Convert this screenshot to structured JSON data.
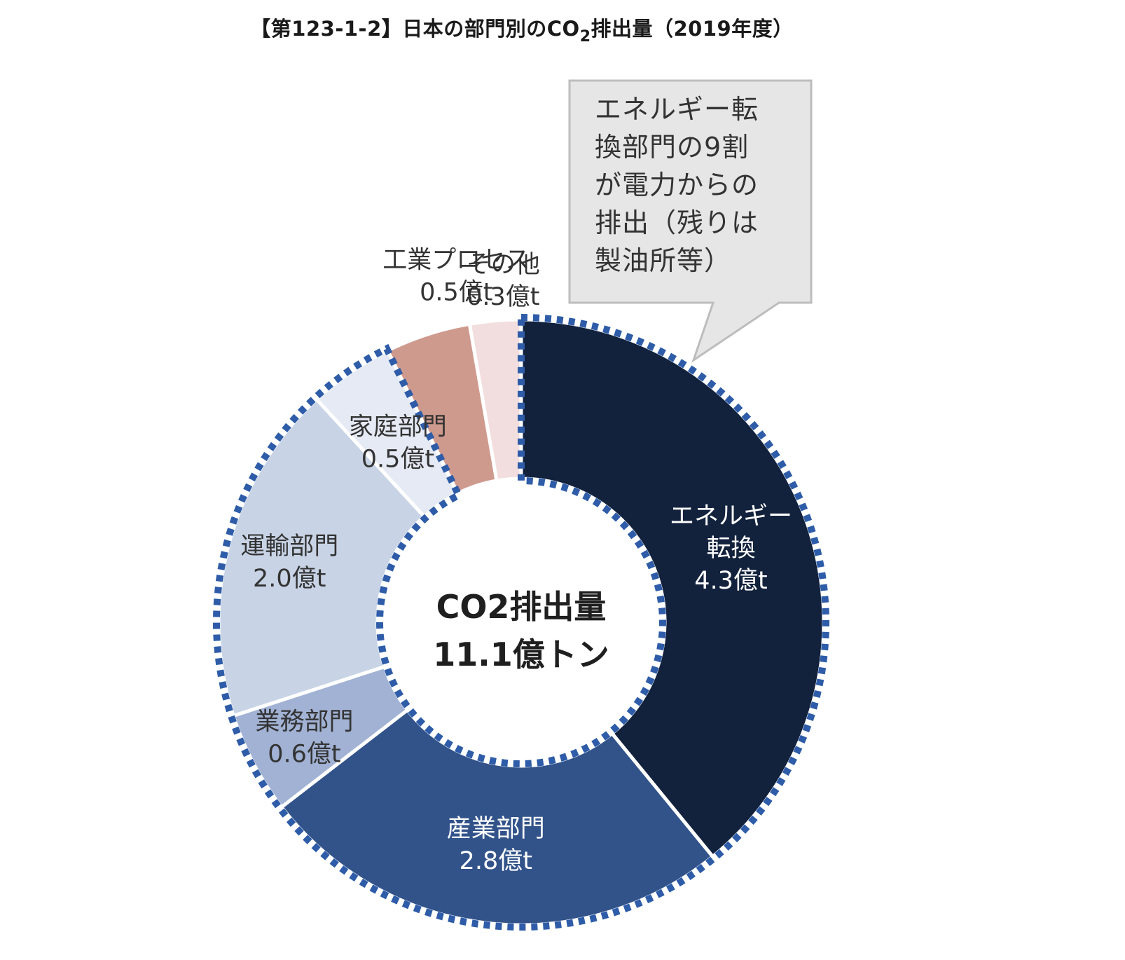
{
  "title": {
    "prefix": "【第123-1-2】日本の部門別のCO",
    "sub": "2",
    "suffix": "排出量（2019年度）"
  },
  "callout": {
    "line1": "エネルギー転",
    "line2": "換部門の9割",
    "line3": "が電力からの",
    "line4": "排出（残りは",
    "line5": "製油所等）"
  },
  "center": {
    "line1": "CO2排出量",
    "line2": "11.1億トン"
  },
  "chart_data": {
    "type": "pie",
    "title": "日本の部門別のCO2排出量（2019年度）",
    "unit": "億t",
    "total": 11.1,
    "slices": [
      {
        "label": "エネルギー転換",
        "label_lines": [
          "エネルギー",
          "転換"
        ],
        "value": 4.3,
        "value_text": "4.3億t",
        "color": "#12213c",
        "text_color": "#ffffff"
      },
      {
        "label": "産業部門",
        "label_lines": [
          "産業部門"
        ],
        "value": 2.8,
        "value_text": "2.8億t",
        "color": "#32538a",
        "text_color": "#ffffff"
      },
      {
        "label": "業務部門",
        "label_lines": [
          "業務部門"
        ],
        "value": 0.6,
        "value_text": "0.6億t",
        "color": "#a1b2d4",
        "text_color": "#333333"
      },
      {
        "label": "運輸部門",
        "label_lines": [
          "運輸部門"
        ],
        "value": 2.0,
        "value_text": "2.0億t",
        "color": "#c8d4e6",
        "text_color": "#333333"
      },
      {
        "label": "家庭部門",
        "label_lines": [
          "家庭部門"
        ],
        "value": 0.5,
        "value_text": "0.5億t",
        "color": "#e5eaf4",
        "text_color": "#333333"
      },
      {
        "label": "工業プロセス",
        "label_lines": [
          "工業プロセス"
        ],
        "value": 0.5,
        "value_text": "0.5億t",
        "color": "#cf9a8e",
        "text_color": "#333333"
      },
      {
        "label": "その他",
        "label_lines": [
          "その他"
        ],
        "value": 0.3,
        "value_text": "0.3億t",
        "color": "#f2dede",
        "text_color": "#333333"
      }
    ],
    "highlight": "dotted blue outline around all sectors except 工業プロセス and その他",
    "highlight_color": "#2e5ca8"
  }
}
